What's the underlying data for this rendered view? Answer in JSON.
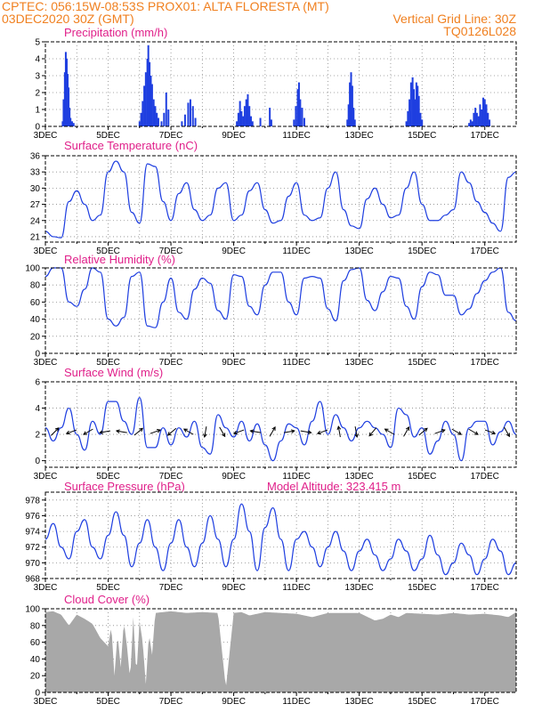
{
  "header": {
    "left_line1": "CPTEC:   056:15W-08:53S   PROX01: ALTA FLORESTA (MT)",
    "left_line2": "03DEC2020 30Z (GMT)",
    "right_line2": "Vertical Grid Line: 30Z",
    "right_line3": "TQ0126L028"
  },
  "colors": {
    "series": "#1f3fe0",
    "cloud": "#a8a8a8",
    "title": "#e0208a",
    "header": "#f08020"
  },
  "x_axis": {
    "start": "03DEC",
    "days": 15,
    "tick_labels": [
      "3DEC",
      "5DEC",
      "7DEC",
      "9DEC",
      "11DEC",
      "13DEC",
      "15DEC",
      "17DEC"
    ],
    "tick_days": [
      0,
      2,
      4,
      6,
      8,
      10,
      12,
      14
    ]
  },
  "chart_data": [
    {
      "id": "precip",
      "type": "bar",
      "title": "Precipitation  (mm/h)",
      "ylim": [
        0,
        5
      ],
      "yticks": [
        0,
        1,
        2,
        3,
        4,
        5
      ],
      "grid": true,
      "bars": [
        [
          0.55,
          0.3
        ],
        [
          0.58,
          1.6
        ],
        [
          0.62,
          3.2
        ],
        [
          0.65,
          4.4
        ],
        [
          0.68,
          4.0
        ],
        [
          0.71,
          3.1
        ],
        [
          0.74,
          2.3
        ],
        [
          0.77,
          1.1
        ],
        [
          0.8,
          0.5
        ],
        [
          0.85,
          0.3
        ],
        [
          0.9,
          0.2
        ],
        [
          3.0,
          0.3
        ],
        [
          3.05,
          0.8
        ],
        [
          3.1,
          1.5
        ],
        [
          3.15,
          2.4
        ],
        [
          3.2,
          3.2
        ],
        [
          3.25,
          4.0
        ],
        [
          3.28,
          4.8
        ],
        [
          3.32,
          3.8
        ],
        [
          3.36,
          3.0
        ],
        [
          3.4,
          2.5
        ],
        [
          3.45,
          1.6
        ],
        [
          3.5,
          1.2
        ],
        [
          3.55,
          0.8
        ],
        [
          3.6,
          0.5
        ],
        [
          3.7,
          0.3
        ],
        [
          3.78,
          0.8
        ],
        [
          3.85,
          2.0
        ],
        [
          3.92,
          1.0
        ],
        [
          4.35,
          0.3
        ],
        [
          4.45,
          0.7
        ],
        [
          4.55,
          1.4
        ],
        [
          4.62,
          1.6
        ],
        [
          4.7,
          1.2
        ],
        [
          4.78,
          0.5
        ],
        [
          6.1,
          0.3
        ],
        [
          6.15,
          0.8
        ],
        [
          6.2,
          1.5
        ],
        [
          6.25,
          0.9
        ],
        [
          6.3,
          0.6
        ],
        [
          6.35,
          1.2
        ],
        [
          6.4,
          1.6
        ],
        [
          6.45,
          1.9
        ],
        [
          6.5,
          1.2
        ],
        [
          6.55,
          0.6
        ],
        [
          6.6,
          0.3
        ],
        [
          6.85,
          0.5
        ],
        [
          7.15,
          1.1
        ],
        [
          7.2,
          0.4
        ],
        [
          7.92,
          0.4
        ],
        [
          7.98,
          1.2
        ],
        [
          8.04,
          2.2
        ],
        [
          8.08,
          2.6
        ],
        [
          8.12,
          1.6
        ],
        [
          8.18,
          1.1
        ],
        [
          8.25,
          0.5
        ],
        [
          9.62,
          0.4
        ],
        [
          9.66,
          1.3
        ],
        [
          9.7,
          2.6
        ],
        [
          9.74,
          3.2
        ],
        [
          9.78,
          2.4
        ],
        [
          9.82,
          1.1
        ],
        [
          9.86,
          0.4
        ],
        [
          11.5,
          0.3
        ],
        [
          11.55,
          0.9
        ],
        [
          11.6,
          1.6
        ],
        [
          11.65,
          2.6
        ],
        [
          11.7,
          2.9
        ],
        [
          11.74,
          2.2
        ],
        [
          11.78,
          1.6
        ],
        [
          11.82,
          2.6
        ],
        [
          11.86,
          2.4
        ],
        [
          11.9,
          1.8
        ],
        [
          11.95,
          0.8
        ],
        [
          12.0,
          0.4
        ],
        [
          13.5,
          0.2
        ],
        [
          13.55,
          0.4
        ],
        [
          13.6,
          0.3
        ],
        [
          13.65,
          0.8
        ],
        [
          13.7,
          1.1
        ],
        [
          13.75,
          0.8
        ],
        [
          13.8,
          0.6
        ],
        [
          13.85,
          1.3
        ],
        [
          13.9,
          1.0
        ],
        [
          13.95,
          1.7
        ],
        [
          14.0,
          1.6
        ],
        [
          14.05,
          1.3
        ],
        [
          14.1,
          0.8
        ],
        [
          14.15,
          0.4
        ]
      ]
    },
    {
      "id": "temp",
      "type": "line",
      "title": "Surface Temperature (nC)",
      "ylim": [
        20,
        36
      ],
      "yticks": [
        21,
        24,
        27,
        30,
        33,
        36
      ],
      "grid": true,
      "x": [
        0.0,
        0.25,
        0.5,
        0.75,
        1.0,
        1.25,
        1.5,
        1.75,
        2.0,
        2.25,
        2.5,
        2.75,
        3.0,
        3.25,
        3.5,
        3.75,
        4.0,
        4.25,
        4.5,
        4.75,
        5.0,
        5.25,
        5.5,
        5.75,
        6.0,
        6.25,
        6.5,
        6.75,
        7.0,
        7.25,
        7.5,
        7.75,
        8.0,
        8.25,
        8.5,
        8.75,
        9.0,
        9.25,
        9.5,
        9.75,
        10.0,
        10.25,
        10.5,
        10.75,
        11.0,
        11.25,
        11.5,
        11.75,
        12.0,
        12.25,
        12.5,
        12.75,
        13.0,
        13.25,
        13.5,
        13.75,
        14.0,
        14.25,
        14.5,
        14.75,
        15.0
      ],
      "values": [
        22,
        21,
        20.8,
        27.5,
        29.5,
        27,
        24,
        25,
        33,
        35,
        33,
        25.5,
        23.5,
        34.5,
        34,
        27.5,
        24,
        29,
        31,
        26,
        24,
        25,
        30,
        31,
        24,
        25,
        29.5,
        31,
        26,
        23.5,
        24,
        28.5,
        31,
        25,
        24,
        24.5,
        30,
        33,
        26,
        23,
        22.5,
        28,
        30,
        27,
        24.5,
        25,
        30,
        33,
        27,
        24,
        24,
        25,
        26,
        33,
        31,
        27.5,
        25.5,
        23.5,
        22,
        32,
        33
      ]
    },
    {
      "id": "rh",
      "type": "line",
      "title": "Relative Humidity (%)",
      "ylim": [
        0,
        100
      ],
      "yticks": [
        0,
        20,
        40,
        60,
        80,
        100
      ],
      "grid": true,
      "x": [
        0.0,
        0.25,
        0.5,
        0.75,
        1.0,
        1.25,
        1.5,
        1.75,
        2.0,
        2.25,
        2.5,
        2.75,
        3.0,
        3.25,
        3.5,
        3.75,
        4.0,
        4.25,
        4.5,
        4.75,
        5.0,
        5.25,
        5.5,
        5.75,
        6.0,
        6.25,
        6.5,
        6.75,
        7.0,
        7.25,
        7.5,
        7.75,
        8.0,
        8.25,
        8.5,
        8.75,
        9.0,
        9.25,
        9.5,
        9.75,
        10.0,
        10.25,
        10.5,
        10.75,
        11.0,
        11.25,
        11.5,
        11.75,
        12.0,
        12.25,
        12.5,
        12.75,
        13.0,
        13.25,
        13.5,
        13.75,
        14.0,
        14.25,
        14.5,
        14.75,
        15.0
      ],
      "values": [
        90,
        100,
        100,
        60,
        55,
        75,
        100,
        95,
        40,
        32,
        42,
        90,
        95,
        32,
        30,
        60,
        88,
        48,
        40,
        75,
        88,
        82,
        50,
        40,
        92,
        90,
        55,
        45,
        80,
        95,
        95,
        60,
        45,
        88,
        90,
        88,
        52,
        38,
        85,
        98,
        100,
        62,
        50,
        72,
        90,
        88,
        55,
        40,
        78,
        95,
        92,
        68,
        68,
        45,
        52,
        70,
        85,
        95,
        100,
        48,
        38
      ]
    },
    {
      "id": "wind",
      "type": "line",
      "title": "Surface Wind (m/s)",
      "ylim": [
        -0.5,
        6
      ],
      "yticks": [
        0,
        2,
        4,
        6
      ],
      "grid": true,
      "x": [
        0.0,
        0.25,
        0.5,
        0.75,
        1.0,
        1.25,
        1.5,
        1.75,
        2.0,
        2.25,
        2.5,
        2.75,
        3.0,
        3.25,
        3.5,
        3.75,
        4.0,
        4.25,
        4.5,
        4.75,
        5.0,
        5.25,
        5.5,
        5.75,
        6.0,
        6.25,
        6.5,
        6.75,
        7.0,
        7.25,
        7.5,
        7.75,
        8.0,
        8.25,
        8.5,
        8.75,
        9.0,
        9.25,
        9.5,
        9.75,
        10.0,
        10.25,
        10.5,
        10.75,
        11.0,
        11.25,
        11.5,
        11.75,
        12.0,
        12.25,
        12.5,
        12.75,
        13.0,
        13.25,
        13.5,
        13.75,
        14.0,
        14.25,
        14.5,
        14.75,
        15.0
      ],
      "values": [
        2.5,
        1.5,
        2.5,
        4.0,
        2.0,
        0.8,
        3.0,
        2.0,
        4.5,
        4.5,
        3.0,
        2.0,
        4.8,
        1.0,
        1.0,
        2.5,
        1.2,
        2.5,
        1.8,
        3.0,
        1.0,
        0.5,
        3.5,
        2.5,
        1.8,
        3.0,
        1.5,
        2.8,
        1.2,
        0.0,
        1.5,
        2.8,
        2.5,
        1.2,
        3.0,
        4.5,
        2.0,
        3.5,
        2.5,
        1.5,
        2.5,
        3.0,
        2.5,
        2.0,
        1.0,
        4.0,
        3.5,
        1.8,
        2.5,
        0.5,
        1.5,
        3.0,
        2.0,
        0.0,
        2.5,
        3.0,
        3.0,
        1.2,
        2.2,
        3.0,
        2.0
      ],
      "arrows_deg": [
        45,
        200,
        210,
        190,
        170,
        40,
        20,
        220,
        150,
        260,
        300,
        200,
        170,
        60,
        10,
        350,
        200,
        100,
        280,
        230,
        150,
        60,
        40,
        20,
        330,
        330,
        340,
        300
      ]
    },
    {
      "id": "pressure",
      "type": "line",
      "title": "Surface Pressure (hPa)",
      "annotation": "Model Altitude: 323.415  m",
      "ylim": [
        968,
        979
      ],
      "yticks": [
        968,
        970,
        972,
        974,
        976,
        978
      ],
      "grid": true,
      "x": [
        0.0,
        0.25,
        0.5,
        0.75,
        1.0,
        1.25,
        1.5,
        1.75,
        2.0,
        2.25,
        2.5,
        2.75,
        3.0,
        3.25,
        3.5,
        3.75,
        4.0,
        4.25,
        4.5,
        4.75,
        5.0,
        5.25,
        5.5,
        5.75,
        6.0,
        6.25,
        6.5,
        6.75,
        7.0,
        7.25,
        7.5,
        7.75,
        8.0,
        8.25,
        8.5,
        8.75,
        9.0,
        9.25,
        9.5,
        9.75,
        10.0,
        10.25,
        10.5,
        10.75,
        11.0,
        11.25,
        11.5,
        11.75,
        12.0,
        12.25,
        12.5,
        12.75,
        13.0,
        13.25,
        13.5,
        13.75,
        14.0,
        14.25,
        14.5,
        14.75,
        15.0
      ],
      "values": [
        973,
        975,
        972,
        970.5,
        974,
        975.5,
        972,
        970.5,
        973.5,
        976.5,
        973.5,
        969.5,
        972.5,
        975.5,
        972,
        969,
        972.5,
        975.5,
        972,
        969.5,
        972.5,
        976,
        973,
        969.5,
        973,
        977.5,
        974,
        969,
        974.5,
        977,
        973,
        969,
        973,
        974,
        972,
        969.5,
        972,
        974,
        971.5,
        969,
        971.5,
        973,
        971,
        969,
        970.5,
        973,
        971.5,
        969,
        970.5,
        973.5,
        971,
        968.5,
        970,
        972.5,
        971,
        968.5,
        970.5,
        973,
        971.5,
        968.5,
        970
      ]
    },
    {
      "id": "cloud",
      "type": "area",
      "title": "Cloud Cover (%)",
      "ylim": [
        0,
        100
      ],
      "yticks": [
        0,
        20,
        40,
        60,
        80,
        100
      ],
      "grid": true,
      "x": [
        0.0,
        0.25,
        0.5,
        0.75,
        1.0,
        1.25,
        1.5,
        1.75,
        2.0,
        2.1,
        2.2,
        2.3,
        2.4,
        2.5,
        2.6,
        2.7,
        2.8,
        2.9,
        3.0,
        3.1,
        3.2,
        3.3,
        3.4,
        3.5,
        3.75,
        4.0,
        4.5,
        5.0,
        5.5,
        5.75,
        6.0,
        6.25,
        6.5,
        7.0,
        8.0,
        8.5,
        9.0,
        10.0,
        10.5,
        10.75,
        11.0,
        11.25,
        11.5,
        12.0,
        12.5,
        13.0,
        13.5,
        14.0,
        14.5,
        14.75,
        15.0
      ],
      "values": [
        96,
        97,
        93,
        80,
        93,
        88,
        82,
        65,
        55,
        80,
        20,
        70,
        30,
        85,
        55,
        15,
        90,
        20,
        85,
        60,
        10,
        70,
        45,
        95,
        96,
        97,
        95,
        96,
        95,
        5,
        95,
        96,
        92,
        96,
        94,
        90,
        95,
        95,
        86,
        88,
        93,
        90,
        95,
        94,
        93,
        95,
        93,
        94,
        92,
        90,
        96
      ]
    }
  ]
}
